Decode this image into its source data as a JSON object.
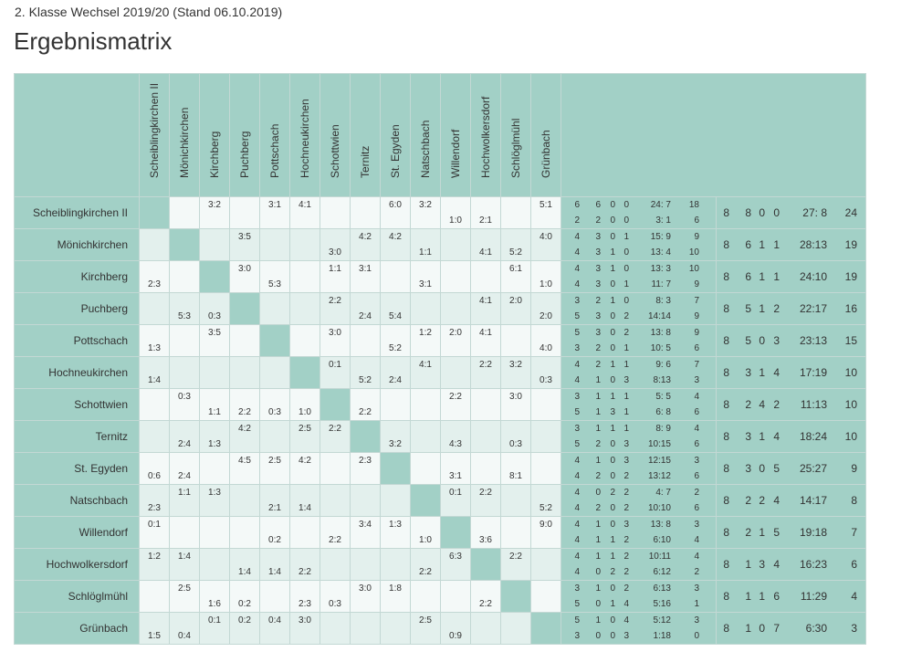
{
  "page": {
    "subtitle": "2. Klasse Wechsel 2019/20 (Stand 06.10.2019)",
    "title": "Ergebnismatrix"
  },
  "teams": [
    "Scheiblingkirchen II",
    "Mönichkirchen",
    "Kirchberg",
    "Puchberg",
    "Pottschach",
    "Hochneukirchen",
    "Schottwien",
    "Ternitz",
    "St. Egyden",
    "Natschbach",
    "Willendorf",
    "Hochwolkersdorf",
    "Schlöglmühl",
    "Grünbach"
  ],
  "matrix": [
    [
      [
        "",
        ""
      ],
      [
        "",
        ""
      ],
      [
        "3:2",
        ""
      ],
      [
        "",
        ""
      ],
      [
        "3:1",
        ""
      ],
      [
        "4:1",
        ""
      ],
      [
        "",
        ""
      ],
      [
        "",
        ""
      ],
      [
        "6:0",
        ""
      ],
      [
        "3:2",
        ""
      ],
      [
        "",
        "1:0"
      ],
      [
        "",
        "2:1"
      ],
      [
        "",
        ""
      ],
      [
        "5:1",
        ""
      ]
    ],
    [
      [
        "",
        ""
      ],
      [
        "",
        ""
      ],
      [
        "",
        ""
      ],
      [
        "3:5",
        ""
      ],
      [
        "",
        ""
      ],
      [
        "",
        ""
      ],
      [
        "",
        "3:0"
      ],
      [
        "4:2",
        ""
      ],
      [
        "4:2",
        ""
      ],
      [
        "",
        "1:1"
      ],
      [
        "",
        ""
      ],
      [
        "",
        "4:1"
      ],
      [
        "",
        "5:2"
      ],
      [
        "4:0",
        ""
      ]
    ],
    [
      [
        "",
        "2:3"
      ],
      [
        "",
        ""
      ],
      [
        "",
        ""
      ],
      [
        "3:0",
        ""
      ],
      [
        "",
        "5:3"
      ],
      [
        "",
        ""
      ],
      [
        "1:1",
        ""
      ],
      [
        "3:1",
        ""
      ],
      [
        "",
        ""
      ],
      [
        "",
        "3:1"
      ],
      [
        "",
        ""
      ],
      [
        "",
        ""
      ],
      [
        "6:1",
        ""
      ],
      [
        "",
        "1:0"
      ]
    ],
    [
      [
        "",
        ""
      ],
      [
        "",
        "5:3"
      ],
      [
        "",
        "0:3"
      ],
      [
        "",
        ""
      ],
      [
        "",
        ""
      ],
      [
        "",
        ""
      ],
      [
        "2:2",
        ""
      ],
      [
        "",
        "2:4"
      ],
      [
        "",
        "5:4"
      ],
      [
        "",
        ""
      ],
      [
        "",
        ""
      ],
      [
        "4:1",
        ""
      ],
      [
        "2:0",
        ""
      ],
      [
        "",
        "2:0"
      ]
    ],
    [
      [
        "",
        "1:3"
      ],
      [
        "",
        ""
      ],
      [
        "3:5",
        ""
      ],
      [
        "",
        ""
      ],
      [
        "",
        ""
      ],
      [
        "",
        ""
      ],
      [
        "3:0",
        ""
      ],
      [
        "",
        ""
      ],
      [
        "",
        "5:2"
      ],
      [
        "1:2",
        ""
      ],
      [
        "2:0",
        ""
      ],
      [
        "4:1",
        ""
      ],
      [
        "",
        ""
      ],
      [
        "",
        "4:0"
      ]
    ],
    [
      [
        "",
        "1:4"
      ],
      [
        "",
        ""
      ],
      [
        "",
        ""
      ],
      [
        "",
        ""
      ],
      [
        "",
        ""
      ],
      [
        "",
        ""
      ],
      [
        "0:1",
        ""
      ],
      [
        "",
        "5:2"
      ],
      [
        "",
        "2:4"
      ],
      [
        "4:1",
        ""
      ],
      [
        "",
        ""
      ],
      [
        "2:2",
        ""
      ],
      [
        "3:2",
        ""
      ],
      [
        "",
        "0:3"
      ]
    ],
    [
      [
        "",
        ""
      ],
      [
        "0:3",
        ""
      ],
      [
        "",
        "1:1"
      ],
      [
        "",
        "2:2"
      ],
      [
        "",
        "0:3"
      ],
      [
        "",
        "1:0"
      ],
      [
        "",
        ""
      ],
      [
        "",
        "2:2"
      ],
      [
        "",
        ""
      ],
      [
        "",
        ""
      ],
      [
        "2:2",
        ""
      ],
      [
        "",
        ""
      ],
      [
        "3:0",
        ""
      ],
      [
        "",
        ""
      ]
    ],
    [
      [
        "",
        ""
      ],
      [
        "",
        "2:4"
      ],
      [
        "",
        "1:3"
      ],
      [
        "4:2",
        ""
      ],
      [
        "",
        ""
      ],
      [
        "2:5",
        ""
      ],
      [
        "2:2",
        ""
      ],
      [
        "",
        ""
      ],
      [
        "",
        "3:2"
      ],
      [
        "",
        ""
      ],
      [
        "",
        "4:3"
      ],
      [
        "",
        ""
      ],
      [
        "",
        "0:3"
      ],
      [
        "",
        ""
      ]
    ],
    [
      [
        "",
        "0:6"
      ],
      [
        "",
        "2:4"
      ],
      [
        "",
        ""
      ],
      [
        "4:5",
        ""
      ],
      [
        "2:5",
        ""
      ],
      [
        "4:2",
        ""
      ],
      [
        "",
        ""
      ],
      [
        "2:3",
        ""
      ],
      [
        "",
        ""
      ],
      [
        "",
        ""
      ],
      [
        "",
        "3:1"
      ],
      [
        "",
        ""
      ],
      [
        "",
        "8:1"
      ],
      [
        "",
        ""
      ]
    ],
    [
      [
        "",
        "2:3"
      ],
      [
        "1:1",
        ""
      ],
      [
        "1:3",
        ""
      ],
      [
        "",
        ""
      ],
      [
        "",
        "2:1"
      ],
      [
        "",
        "1:4"
      ],
      [
        "",
        ""
      ],
      [
        "",
        ""
      ],
      [
        "",
        ""
      ],
      [
        "",
        ""
      ],
      [
        "0:1",
        ""
      ],
      [
        "2:2",
        ""
      ],
      [
        "",
        ""
      ],
      [
        "",
        "5:2"
      ]
    ],
    [
      [
        "0:1",
        ""
      ],
      [
        "",
        ""
      ],
      [
        "",
        ""
      ],
      [
        "",
        ""
      ],
      [
        "",
        "0:2"
      ],
      [
        "",
        ""
      ],
      [
        "",
        "2:2"
      ],
      [
        "3:4",
        ""
      ],
      [
        "1:3",
        ""
      ],
      [
        "",
        "1:0"
      ],
      [
        "",
        ""
      ],
      [
        "",
        "3:6"
      ],
      [
        "",
        ""
      ],
      [
        "9:0",
        ""
      ]
    ],
    [
      [
        "1:2",
        ""
      ],
      [
        "1:4",
        ""
      ],
      [
        "",
        ""
      ],
      [
        "",
        "1:4"
      ],
      [
        "",
        "1:4"
      ],
      [
        "",
        "2:2"
      ],
      [
        "",
        ""
      ],
      [
        "",
        ""
      ],
      [
        "",
        ""
      ],
      [
        "",
        "2:2"
      ],
      [
        "6:3",
        ""
      ],
      [
        "",
        ""
      ],
      [
        "2:2",
        ""
      ],
      [
        "",
        ""
      ]
    ],
    [
      [
        "",
        ""
      ],
      [
        "2:5",
        ""
      ],
      [
        "",
        "1:6"
      ],
      [
        "",
        "0:2"
      ],
      [
        "",
        ""
      ],
      [
        "",
        "2:3"
      ],
      [
        "",
        "0:3"
      ],
      [
        "3:0",
        ""
      ],
      [
        "1:8",
        ""
      ],
      [
        "",
        ""
      ],
      [
        "",
        ""
      ],
      [
        "",
        "2:2"
      ],
      [
        "",
        ""
      ],
      [
        "",
        ""
      ]
    ],
    [
      [
        "",
        "1:5"
      ],
      [
        "",
        "0:4"
      ],
      [
        "0:1",
        ""
      ],
      [
        "0:2",
        ""
      ],
      [
        "0:4",
        ""
      ],
      [
        "3:0",
        ""
      ],
      [
        "",
        ""
      ],
      [
        "",
        ""
      ],
      [
        "",
        ""
      ],
      [
        "2:5",
        ""
      ],
      [
        "",
        "0:9"
      ],
      [
        "",
        ""
      ],
      [
        "",
        ""
      ],
      [
        "",
        ""
      ]
    ]
  ],
  "stats": [
    [
      [
        "6",
        "6",
        "0",
        "0",
        "24: 7",
        "18"
      ],
      [
        "2",
        "2",
        "0",
        "0",
        "3: 1",
        "6"
      ]
    ],
    [
      [
        "4",
        "3",
        "0",
        "1",
        "15: 9",
        "9"
      ],
      [
        "4",
        "3",
        "1",
        "0",
        "13: 4",
        "10"
      ]
    ],
    [
      [
        "4",
        "3",
        "1",
        "0",
        "13: 3",
        "10"
      ],
      [
        "4",
        "3",
        "0",
        "1",
        "11: 7",
        "9"
      ]
    ],
    [
      [
        "3",
        "2",
        "1",
        "0",
        "8: 3",
        "7"
      ],
      [
        "5",
        "3",
        "0",
        "2",
        "14:14",
        "9"
      ]
    ],
    [
      [
        "5",
        "3",
        "0",
        "2",
        "13: 8",
        "9"
      ],
      [
        "3",
        "2",
        "0",
        "1",
        "10: 5",
        "6"
      ]
    ],
    [
      [
        "4",
        "2",
        "1",
        "1",
        "9: 6",
        "7"
      ],
      [
        "4",
        "1",
        "0",
        "3",
        "8:13",
        "3"
      ]
    ],
    [
      [
        "3",
        "1",
        "1",
        "1",
        "5: 5",
        "4"
      ],
      [
        "5",
        "1",
        "3",
        "1",
        "6: 8",
        "6"
      ]
    ],
    [
      [
        "3",
        "1",
        "1",
        "1",
        "8: 9",
        "4"
      ],
      [
        "5",
        "2",
        "0",
        "3",
        "10:15",
        "6"
      ]
    ],
    [
      [
        "4",
        "1",
        "0",
        "3",
        "12:15",
        "3"
      ],
      [
        "4",
        "2",
        "0",
        "2",
        "13:12",
        "6"
      ]
    ],
    [
      [
        "4",
        "0",
        "2",
        "2",
        "4: 7",
        "2"
      ],
      [
        "4",
        "2",
        "0",
        "2",
        "10:10",
        "6"
      ]
    ],
    [
      [
        "4",
        "1",
        "0",
        "3",
        "13: 8",
        "3"
      ],
      [
        "4",
        "1",
        "1",
        "2",
        "6:10",
        "4"
      ]
    ],
    [
      [
        "4",
        "1",
        "1",
        "2",
        "10:11",
        "4"
      ],
      [
        "4",
        "0",
        "2",
        "2",
        "6:12",
        "2"
      ]
    ],
    [
      [
        "3",
        "1",
        "0",
        "2",
        "6:13",
        "3"
      ],
      [
        "5",
        "0",
        "1",
        "4",
        "5:16",
        "1"
      ]
    ],
    [
      [
        "5",
        "1",
        "0",
        "4",
        "5:12",
        "3"
      ],
      [
        "3",
        "0",
        "0",
        "3",
        "1:18",
        "0"
      ]
    ]
  ],
  "totals": [
    [
      "8",
      "8",
      "0",
      "0",
      "27: 8",
      "24"
    ],
    [
      "8",
      "6",
      "1",
      "1",
      "28:13",
      "19"
    ],
    [
      "8",
      "6",
      "1",
      "1",
      "24:10",
      "19"
    ],
    [
      "8",
      "5",
      "1",
      "2",
      "22:17",
      "16"
    ],
    [
      "8",
      "5",
      "0",
      "3",
      "23:13",
      "15"
    ],
    [
      "8",
      "3",
      "1",
      "4",
      "17:19",
      "10"
    ],
    [
      "8",
      "2",
      "4",
      "2",
      "11:13",
      "10"
    ],
    [
      "8",
      "3",
      "1",
      "4",
      "18:24",
      "10"
    ],
    [
      "8",
      "3",
      "0",
      "5",
      "25:27",
      "9"
    ],
    [
      "8",
      "2",
      "2",
      "4",
      "14:17",
      "8"
    ],
    [
      "8",
      "2",
      "1",
      "5",
      "19:18",
      "7"
    ],
    [
      "8",
      "1",
      "3",
      "4",
      "16:23",
      "6"
    ],
    [
      "8",
      "1",
      "1",
      "6",
      "11:29",
      "4"
    ],
    [
      "8",
      "1",
      "0",
      "7",
      "6:30",
      "3"
    ]
  ],
  "colors": {
    "header_teal": "#a2d0c6",
    "cell_light": "#f4f9f8",
    "cell_alt": "#e3f0ed",
    "border": "#c3d8d4"
  }
}
